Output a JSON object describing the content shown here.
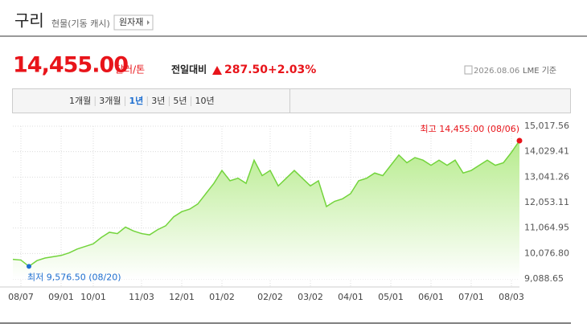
{
  "header": {
    "title": "구리",
    "subtitle": "현물(기동 캐시)",
    "button": "원자재"
  },
  "quote": {
    "price": "14,455.00",
    "unit": "달러/톤",
    "change_label": "전일대비",
    "change": "287.50",
    "change_pct": "+2.03%",
    "date": "2026.08.06",
    "source": "LME 기준"
  },
  "tabs": [
    "1개월",
    "3개월",
    "1년",
    "3년",
    "5년",
    "10년"
  ],
  "active_tab": 2,
  "chart_data": {
    "type": "line",
    "categories": [
      null,
      "08/07",
      null,
      null,
      null,
      null,
      "09/01",
      null,
      null,
      null,
      "10/01",
      null,
      null,
      null,
      null,
      null,
      "11/03",
      null,
      null,
      null,
      null,
      "12/01",
      null,
      null,
      null,
      null,
      "01/02",
      null,
      null,
      null,
      null,
      null,
      "02/02",
      null,
      null,
      null,
      null,
      "03/02",
      null,
      null,
      null,
      null,
      "04/01",
      null,
      null,
      null,
      null,
      "05/01",
      null,
      null,
      null,
      null,
      "06/01",
      null,
      null,
      null,
      null,
      "07/01",
      null,
      null,
      null,
      null,
      "08/03",
      null
    ],
    "values": [
      9850,
      9820,
      9576.5,
      9800,
      9900,
      9950,
      10000,
      10100,
      10250,
      10350,
      10450,
      10700,
      10900,
      10850,
      11100,
      10950,
      10850,
      10800,
      11000,
      11150,
      11500,
      11700,
      11800,
      12000,
      12400,
      12800,
      13300,
      12900,
      13000,
      12800,
      13700,
      13100,
      13300,
      12700,
      13000,
      13300,
      13000,
      12700,
      12900,
      11900,
      12100,
      12200,
      12400,
      12900,
      13000,
      13200,
      13100,
      13500,
      13900,
      13600,
      13800,
      13700,
      13500,
      13700,
      13500,
      13700,
      13200,
      13300,
      13500,
      13700,
      13500,
      13600,
      14000,
      14455
    ],
    "color": "#73d43c",
    "ylim": [
      9088.65,
      15017.56
    ],
    "yticks": [
      {
        "value": 9088.65,
        "label": "9,088.65"
      },
      {
        "value": 10076.8,
        "label": "10,076.80"
      },
      {
        "value": 11064.95,
        "label": "11,064.95"
      },
      {
        "value": 12053.11,
        "label": "12,053.11"
      },
      {
        "value": 13041.26,
        "label": "13,041.26"
      },
      {
        "value": 14029.41,
        "label": "14,029.41"
      },
      {
        "value": 15017.56,
        "label": "15,017.56"
      }
    ],
    "grid": true,
    "annotations": {
      "max": "최고 14,455.00 (08/06)",
      "min": "최저 9,576.50 (08/20)"
    },
    "max_index": 63,
    "min_index": 2,
    "max_color": "#e8141a",
    "min_color": "#1e6fd0"
  }
}
